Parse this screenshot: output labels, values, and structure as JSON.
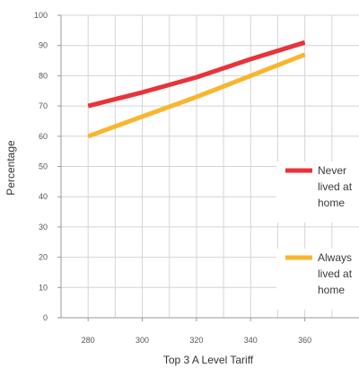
{
  "chart_data": {
    "type": "line",
    "xlabel": "Top 3 A Level Tariff",
    "ylabel": "Percentage",
    "xlim": [
      270,
      380
    ],
    "ylim": [
      0,
      100
    ],
    "x_ticks": [
      "280",
      "300",
      "320",
      "340",
      "360"
    ],
    "y_ticks": [
      "0",
      "10",
      "20",
      "30",
      "40",
      "50",
      "60",
      "70",
      "80",
      "90",
      "100"
    ],
    "grid": true,
    "legend_position": "right",
    "series": [
      {
        "name": "Never lived at home",
        "legend_lines": [
          "Never",
          "lived at",
          "home"
        ],
        "color": "#e8333a",
        "x": [
          280,
          300,
          320,
          340,
          360
        ],
        "y": [
          70,
          74.5,
          79.5,
          85.5,
          91
        ]
      },
      {
        "name": "Always lived at home",
        "legend_lines": [
          "Always",
          "lived at",
          "home"
        ],
        "color": "#f8b62d",
        "x": [
          280,
          300,
          320,
          340,
          360
        ],
        "y": [
          60,
          66.5,
          73,
          80,
          87
        ]
      }
    ]
  }
}
